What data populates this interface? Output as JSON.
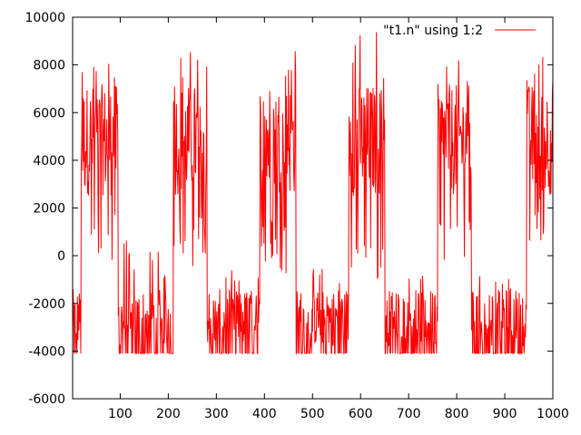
{
  "chart_data": {
    "type": "line",
    "title": "",
    "xlabel": "",
    "ylabel": "",
    "xlim": [
      1,
      1000
    ],
    "ylim": [
      -6000,
      10000
    ],
    "grid": false,
    "legend": {
      "placement": "top-right"
    },
    "x_ticks": [
      100,
      200,
      300,
      400,
      500,
      600,
      700,
      800,
      900,
      1000
    ],
    "x_tick_labels": [
      "100",
      "200",
      "300",
      "400",
      "500",
      "600",
      "700",
      "800",
      "900",
      "1000"
    ],
    "y_ticks": [
      -6000,
      -4000,
      -2000,
      0,
      2000,
      4000,
      6000,
      8000,
      10000
    ],
    "y_tick_labels": [
      "-6000",
      "-4000",
      "-2000",
      "0",
      "2000",
      "4000",
      "6000",
      "8000",
      "10000"
    ],
    "series": [
      {
        "name": "\"t1.n\" using 1:2",
        "color": "#ff0000",
        "points_per_segment": "one value every x step (x = 1..1000)",
        "segments": [
          {
            "x_start": 1,
            "x_end": 18,
            "level": "low",
            "y_min": -4100,
            "y_max": -1300
          },
          {
            "x_start": 19,
            "x_end": 95,
            "level": "high",
            "y_min": -500,
            "y_max": 8500
          },
          {
            "x_start": 96,
            "x_end": 210,
            "level": "low",
            "y_min": -4100,
            "y_max": 700
          },
          {
            "x_start": 211,
            "x_end": 280,
            "level": "high",
            "y_min": -800,
            "y_max": 8600
          },
          {
            "x_start": 281,
            "x_end": 390,
            "level": "low",
            "y_min": -4100,
            "y_max": -500
          },
          {
            "x_start": 391,
            "x_end": 465,
            "level": "high",
            "y_min": -800,
            "y_max": 9000
          },
          {
            "x_start": 466,
            "x_end": 575,
            "level": "low",
            "y_min": -4100,
            "y_max": -500
          },
          {
            "x_start": 576,
            "x_end": 650,
            "level": "high",
            "y_min": -1100,
            "y_max": 9500
          },
          {
            "x_start": 651,
            "x_end": 760,
            "level": "low",
            "y_min": -4100,
            "y_max": -800
          },
          {
            "x_start": 761,
            "x_end": 830,
            "level": "high",
            "y_min": -500,
            "y_max": 8200
          },
          {
            "x_start": 831,
            "x_end": 945,
            "level": "low",
            "y_min": -4100,
            "y_max": -700
          },
          {
            "x_start": 946,
            "x_end": 1000,
            "level": "high",
            "y_min": 0,
            "y_max": 8800
          }
        ]
      }
    ]
  }
}
